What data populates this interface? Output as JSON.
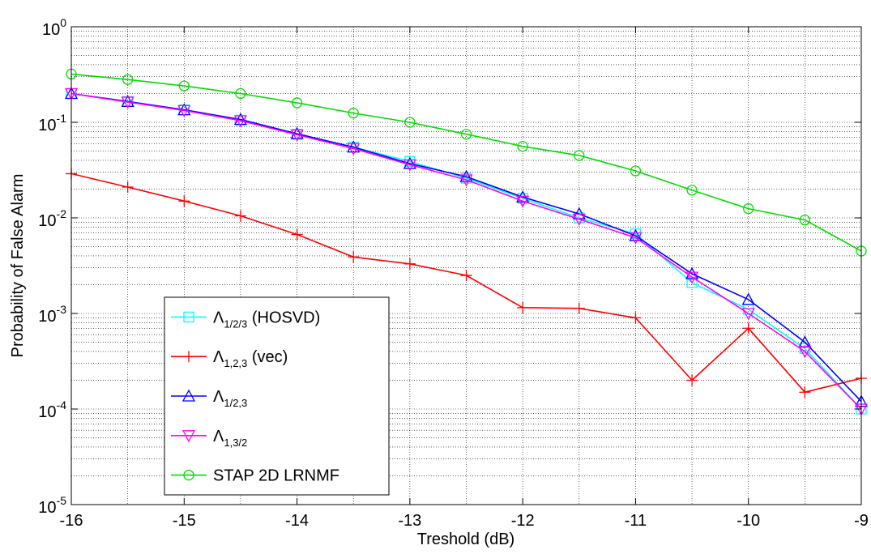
{
  "chart_data": {
    "type": "line",
    "xlabel": "Treshold (dB)",
    "ylabel": "Probability of False Alarm",
    "xlim": [
      -16,
      -9
    ],
    "ylim": [
      1e-05,
      1
    ],
    "yscale": "log",
    "grid": "on",
    "legend_position": "bottom-left",
    "x_ticks": [
      "-16",
      "-15",
      "-14",
      "-13",
      "-12",
      "-11",
      "-10",
      "-9"
    ],
    "y_tick_bases": [
      "10",
      "10",
      "10",
      "10",
      "10",
      "10"
    ],
    "y_tick_exponents": [
      "-5",
      "-4",
      "-3",
      "-2",
      "-1",
      "0"
    ],
    "x": [
      -16,
      -15.5,
      -15,
      -14.5,
      -14,
      -13.5,
      -13,
      -12.5,
      -12,
      -11.5,
      -11,
      -10.5,
      -10,
      -9.5,
      -9
    ],
    "series": [
      {
        "name": "Λ1/2/3 (HOSVD)",
        "symbol": "Λ",
        "subscript": "1/2/3",
        "suffix": " (HOSVD)",
        "color": "#00ffff",
        "marker": "square",
        "values": [
          0.2,
          0.165,
          0.135,
          0.105,
          0.075,
          0.055,
          0.039,
          0.026,
          0.016,
          0.01,
          0.0068,
          0.0021,
          0.0011,
          0.00043,
          0.0001
        ]
      },
      {
        "name": "Λ1,2,3 (vec)",
        "symbol": "Λ",
        "subscript": "1,2,3",
        "suffix": " (vec)",
        "color": "#ff0000",
        "marker": "plus",
        "values": [
          0.029,
          0.021,
          0.015,
          0.0105,
          0.0067,
          0.0039,
          0.0033,
          0.0025,
          0.00115,
          0.00113,
          0.0009,
          0.0002,
          0.0007,
          0.00015,
          0.00021
        ]
      },
      {
        "name": "Λ1/2,3",
        "symbol": "Λ",
        "subscript": "1/2,3",
        "suffix": "",
        "color": "#0000ff",
        "marker": "triangle-up",
        "values": [
          0.2,
          0.165,
          0.135,
          0.107,
          0.076,
          0.055,
          0.037,
          0.027,
          0.0165,
          0.011,
          0.0065,
          0.0026,
          0.0014,
          0.0005,
          0.00012
        ]
      },
      {
        "name": "Λ1,3/2",
        "symbol": "Λ",
        "subscript": "1,3/2",
        "suffix": "",
        "color": "#ff00ff",
        "marker": "triangle-down",
        "values": [
          0.2,
          0.163,
          0.133,
          0.104,
          0.074,
          0.053,
          0.036,
          0.025,
          0.015,
          0.0097,
          0.0062,
          0.0024,
          0.001,
          0.0004,
          0.0001
        ]
      },
      {
        "name": "STAP 2D LRNMF",
        "symbol": "",
        "subscript": "",
        "suffix": "STAP 2D LRNMF",
        "color": "#00dd00",
        "marker": "circle",
        "values": [
          0.32,
          0.28,
          0.24,
          0.2,
          0.16,
          0.125,
          0.1,
          0.075,
          0.056,
          0.045,
          0.031,
          0.0195,
          0.0125,
          0.0095,
          0.0045
        ]
      }
    ]
  }
}
